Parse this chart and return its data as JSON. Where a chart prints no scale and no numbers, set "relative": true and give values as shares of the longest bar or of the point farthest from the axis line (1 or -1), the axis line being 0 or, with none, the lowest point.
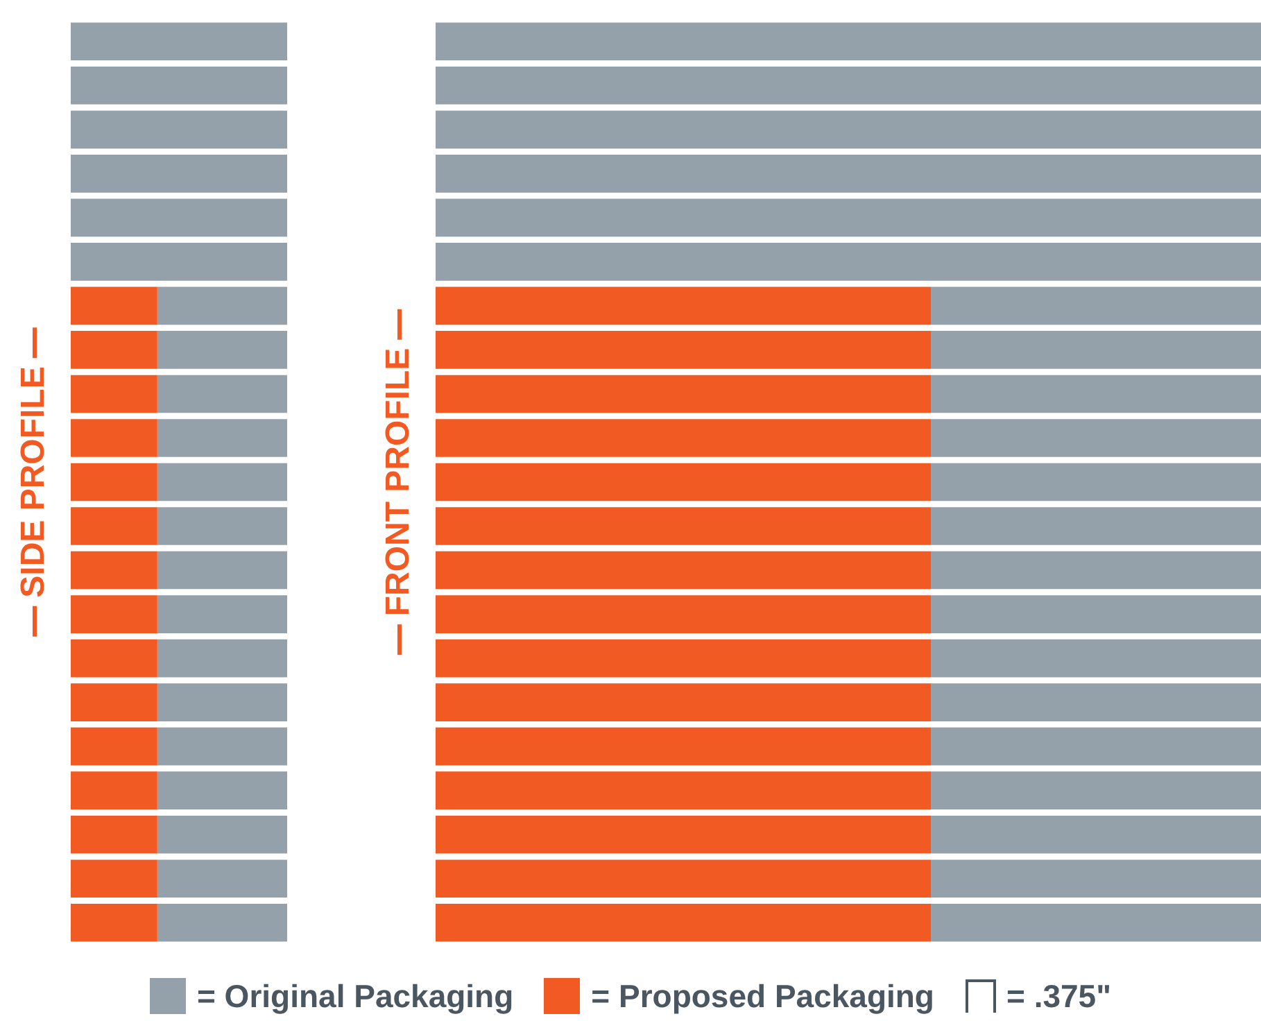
{
  "chart_data": [
    {
      "type": "bar",
      "orientation": "horizontal",
      "stacked": true,
      "relative": true,
      "title": "SIDE PROFILE",
      "tick_labels": false,
      "categories": [
        null,
        null,
        null,
        null,
        null,
        null,
        null,
        null,
        null,
        null,
        null,
        null,
        null,
        null,
        null,
        null,
        null,
        null,
        null,
        null,
        null
      ],
      "series": [
        {
          "color": "#f15a22",
          "values": [
            0,
            0,
            0,
            0,
            0,
            0,
            0.4,
            0.4,
            0.4,
            0.4,
            0.4,
            0.4,
            0.4,
            0.4,
            0.4,
            0.4,
            0.4,
            0.4,
            0.4,
            0.4,
            0.4
          ]
        },
        {
          "color": "#95a1aa",
          "values": [
            1,
            1,
            1,
            1,
            1,
            1,
            0.6,
            0.6,
            0.6,
            0.6,
            0.6,
            0.6,
            0.6,
            0.6,
            0.6,
            0.6,
            0.6,
            0.6,
            0.6,
            0.6,
            0.6
          ]
        }
      ]
    },
    {
      "type": "bar",
      "orientation": "horizontal",
      "stacked": true,
      "relative": true,
      "title": "FRONT PROFILE",
      "tick_labels": false,
      "legend": "bottom",
      "categories": [
        null,
        null,
        null,
        null,
        null,
        null,
        null,
        null,
        null,
        null,
        null,
        null,
        null,
        null,
        null,
        null,
        null,
        null,
        null,
        null,
        null
      ],
      "series": [
        {
          "name": "= Proposed Packaging",
          "color": "#f15a22",
          "values": [
            0,
            0,
            0,
            0,
            0,
            0,
            0.6,
            0.6,
            0.6,
            0.6,
            0.6,
            0.6,
            0.6,
            0.6,
            0.6,
            0.6,
            0.6,
            0.6,
            0.6,
            0.6,
            0.6
          ]
        },
        {
          "name": "= Original Packaging",
          "color": "#95a1aa",
          "values": [
            1,
            1,
            1,
            1,
            1,
            1,
            0.4,
            0.4,
            0.4,
            0.4,
            0.4,
            0.4,
            0.4,
            0.4,
            0.4,
            0.4,
            0.4,
            0.4,
            0.4,
            0.4,
            0.4
          ]
        }
      ],
      "annotations": [
        "= .375\""
      ]
    }
  ]
}
